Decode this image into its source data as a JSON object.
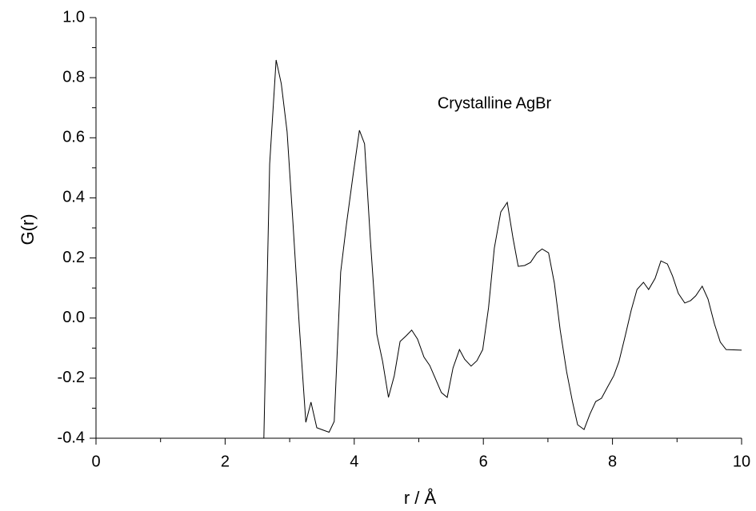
{
  "chart_data": {
    "type": "line",
    "annotation": "Crystalline AgBr",
    "x_label": "r / Å",
    "y_label": "G(r)",
    "xlim": [
      0,
      10
    ],
    "ylim": [
      -0.4,
      1.0
    ],
    "xticks": [
      0,
      2,
      4,
      6,
      8,
      10
    ],
    "xminorticks": [
      1,
      3,
      5,
      7,
      9
    ],
    "yticks": [
      -0.4,
      -0.2,
      {
        "value": 0,
        "label": "0.0"
      },
      0.2,
      0.4,
      0.6,
      0.8,
      {
        "value": 1,
        "label": "1.0"
      }
    ],
    "yminorticks": [
      -0.3,
      -0.1,
      0.1,
      0.3,
      0.5,
      0.7,
      0.9
    ],
    "series": [
      {
        "color": "#000000",
        "x": [
          2.2,
          2.6,
          2.69,
          2.79,
          2.87,
          2.96,
          3.05,
          3.15,
          3.25,
          3.33,
          3.42,
          3.52,
          3.61,
          3.69,
          3.79,
          3.88,
          3.98,
          4.08,
          4.16,
          4.25,
          4.35,
          4.44,
          4.53,
          4.62,
          4.71,
          4.8,
          4.89,
          4.98,
          5.08,
          5.17,
          5.25,
          5.35,
          5.44,
          5.53,
          5.63,
          5.71,
          5.81,
          5.9,
          5.99,
          6.08,
          6.17,
          6.27,
          6.37,
          6.46,
          6.54,
          6.64,
          6.73,
          6.83,
          6.91,
          7.01,
          7.1,
          7.19,
          7.29,
          7.38,
          7.46,
          7.56,
          7.65,
          7.74,
          7.83,
          7.93,
          8.02,
          8.1,
          8.2,
          8.29,
          8.38,
          8.48,
          8.56,
          8.66,
          8.75,
          8.85,
          8.93,
          9.02,
          9.12,
          9.21,
          9.29,
          9.39,
          9.48,
          9.58,
          9.67,
          9.76,
          10.0
        ],
        "values": [
          -0.4,
          -0.4,
          0.513,
          0.859,
          0.78,
          0.62,
          0.32,
          -0.03,
          -0.347,
          -0.28,
          -0.365,
          -0.373,
          -0.38,
          -0.344,
          0.153,
          0.313,
          0.473,
          0.625,
          0.58,
          0.26,
          -0.054,
          -0.145,
          -0.264,
          -0.192,
          -0.078,
          -0.06,
          -0.04,
          -0.07,
          -0.13,
          -0.158,
          -0.198,
          -0.248,
          -0.264,
          -0.166,
          -0.105,
          -0.137,
          -0.16,
          -0.142,
          -0.105,
          0.034,
          0.233,
          0.353,
          0.385,
          0.265,
          0.172,
          0.175,
          0.185,
          0.217,
          0.23,
          0.217,
          0.116,
          -0.04,
          -0.179,
          -0.278,
          -0.355,
          -0.371,
          -0.32,
          -0.278,
          -0.267,
          -0.227,
          -0.192,
          -0.145,
          -0.057,
          0.026,
          0.095,
          0.119,
          0.095,
          0.132,
          0.19,
          0.18,
          0.14,
          0.082,
          0.05,
          0.058,
          0.074,
          0.106,
          0.063,
          -0.02,
          -0.08,
          -0.105,
          -0.107
        ]
      }
    ]
  }
}
